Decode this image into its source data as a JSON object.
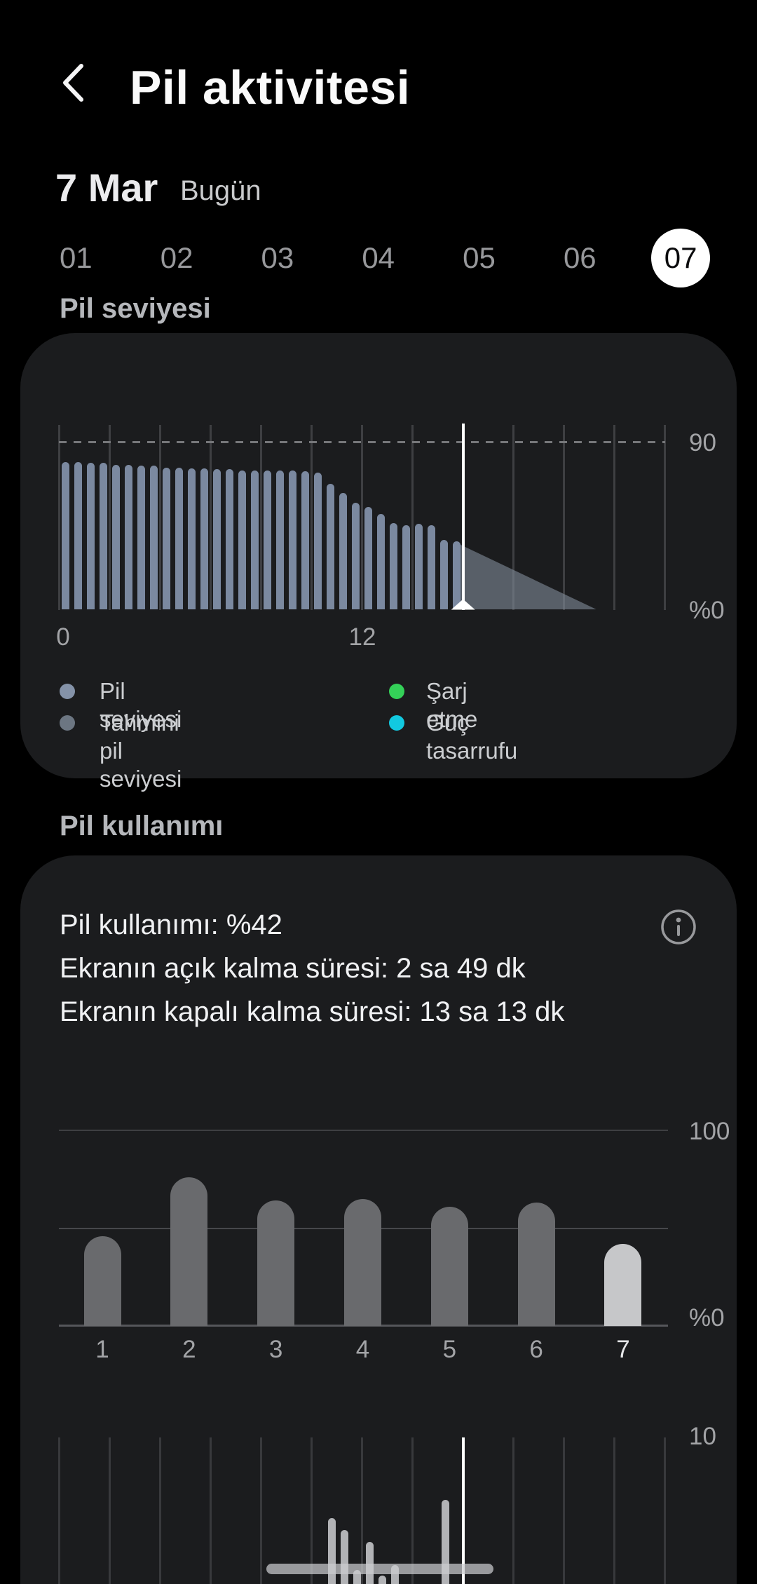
{
  "colors": {
    "page_bg": "#000000",
    "card_bg": "#1b1c1e",
    "battery_bar": "#7b89a0",
    "estimate_fill": "rgba(130,140,153,0.6)",
    "daily_bar": "#696a6d",
    "daily_bar_highlight": "#c6c7c9",
    "hourly_bar": "#b2b3b6",
    "hourly_band": "rgba(203,204,206,0.72)",
    "gridline": "#3e3f42",
    "gridline_soft": "#38393c",
    "gridline_mid": "#47484b",
    "baseline": "#55565a",
    "icon_gray": "#98999c",
    "white": "#ffffff"
  },
  "header": {
    "title": "Pil aktivitesi"
  },
  "date": {
    "day": "7 Mar",
    "today": "Bugün"
  },
  "day_selector": {
    "days": [
      "01",
      "02",
      "03",
      "04",
      "05",
      "06",
      "07"
    ],
    "selected_index": 6
  },
  "section_battery_level": "Pil seviyesi",
  "section_battery_usage": "Pil kullanımı",
  "usage_summary": {
    "usage": "Pil kullanımı: %42",
    "screen_on": "Ekranın açık kalma süresi: 2 sa 49 dk",
    "screen_off": "Ekranın kapalı kalma süresi: 13 sa 13 dk"
  },
  "chart_data": [
    {
      "id": "battery-level-today",
      "type": "bar",
      "title": "Pil seviyesi",
      "x_unit": "hours",
      "x_range": [
        0,
        24
      ],
      "bar_interval_hours": 0.5,
      "x_ticks": [
        "0",
        "12"
      ],
      "y_ticks": [
        "90",
        "%0"
      ],
      "ylim": [
        0,
        100
      ],
      "dashed_level": 90,
      "grid_interval_hours": 2,
      "values": [
        79.5,
        79.5,
        79,
        79,
        78,
        78,
        77.5,
        77.5,
        76.5,
        76.5,
        76,
        76,
        75.5,
        75.5,
        75,
        75,
        75,
        74.8,
        74.8,
        74.3,
        73.7,
        67.6,
        62.9,
        57.3,
        55.3,
        51.3,
        46.6,
        45.6,
        46,
        45.3,
        37.5,
        36.8
      ],
      "current_time_hour": 16,
      "estimate": {
        "start_hour": 15.65,
        "start_level": 36.5,
        "end_hour": 21.3,
        "end_level": 0
      },
      "legend": [
        {
          "label": "Pil seviyesi",
          "color": "#8492a8"
        },
        {
          "label": "Tahmini pil seviyesi",
          "color": "#6c7682"
        },
        {
          "label": "Şarj etme",
          "color": "#34d058"
        },
        {
          "label": "Güç tasarrufu",
          "color": "#12c9e0"
        }
      ]
    },
    {
      "id": "daily-battery-usage",
      "type": "bar",
      "categories": [
        "1",
        "2",
        "3",
        "4",
        "5",
        "6",
        "7"
      ],
      "values": [
        46,
        76,
        64,
        65,
        61,
        63,
        42
      ],
      "highlight_index": 6,
      "y_ticks": [
        "100",
        "%0"
      ],
      "gridlines": [
        100,
        50
      ],
      "ylim": [
        0,
        100
      ]
    },
    {
      "id": "hourly-screen-time",
      "type": "bar",
      "partially_visible": true,
      "x_unit": "hours",
      "x_range": [
        0,
        24
      ],
      "y_ticks": [
        "10"
      ],
      "ylim": [
        0,
        10
      ],
      "grid_interval_hours": 2,
      "current_time_hour": 16,
      "bars": [
        {
          "hour": 10.8,
          "value": 6.2
        },
        {
          "hour": 11.3,
          "value": 5.5
        },
        {
          "hour": 11.8,
          "value": 3.1
        },
        {
          "hour": 12.3,
          "value": 4.8
        },
        {
          "hour": 12.8,
          "value": 2.8
        },
        {
          "hour": 13.3,
          "value": 3.4
        },
        {
          "hour": 15.3,
          "value": 7.3
        }
      ],
      "band": {
        "start_hour": 8.2,
        "end_hour": 17.2,
        "level": 3.2
      }
    }
  ]
}
